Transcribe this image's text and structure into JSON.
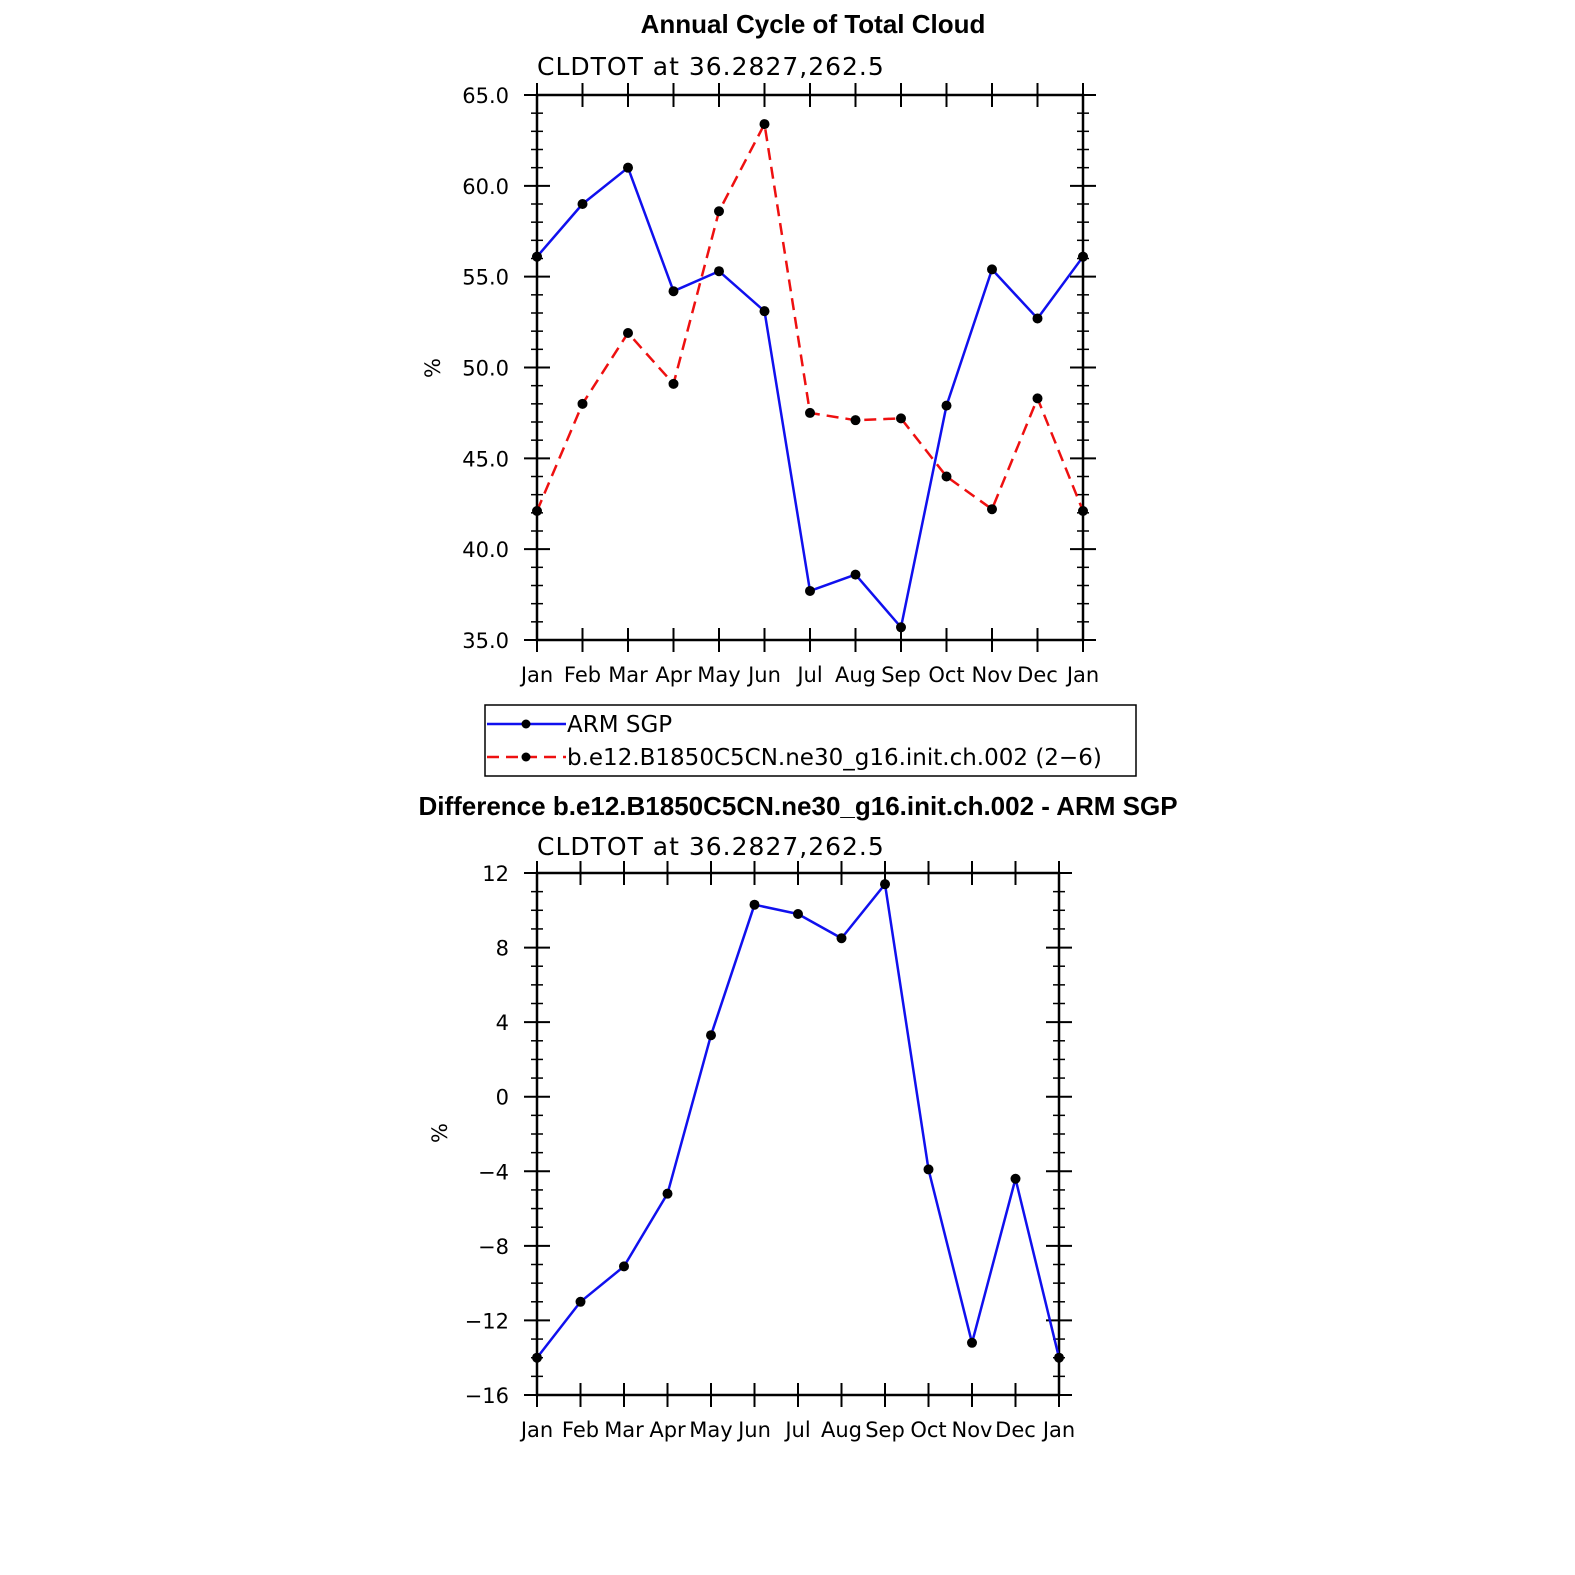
{
  "colors": {
    "obs": "#1010ee",
    "model": "#ee1010",
    "marker": "#000000",
    "axis": "#000000"
  },
  "chart_data": [
    {
      "type": "line",
      "title": "Annual Cycle of Total Cloud",
      "subtitle": "CLDTOT at 36.2827,262.5",
      "ylabel": "%",
      "ylim": [
        35.0,
        65.0
      ],
      "yticks": [
        35.0,
        40.0,
        45.0,
        50.0,
        55.0,
        60.0,
        65.0
      ],
      "ytick_labels": [
        "35.0",
        "40.0",
        "45.0",
        "50.0",
        "55.0",
        "60.0",
        "65.0"
      ],
      "yminor_step": 1,
      "categories": [
        "Jan",
        "Feb",
        "Mar",
        "Apr",
        "May",
        "Jun",
        "Jul",
        "Aug",
        "Sep",
        "Oct",
        "Nov",
        "Dec",
        "Jan"
      ],
      "series": [
        {
          "name": "ARM SGP",
          "style": "solid",
          "color": "#1010ee",
          "values": [
            56.1,
            59.0,
            61.0,
            54.2,
            55.3,
            53.1,
            37.7,
            38.6,
            35.7,
            47.9,
            55.4,
            52.7,
            56.1
          ]
        },
        {
          "name": "b.e12.B1850C5CN.ne30_g16.init.ch.002 (2−6)",
          "style": "dashed",
          "color": "#ee1010",
          "values": [
            42.1,
            48.0,
            51.9,
            49.1,
            58.6,
            63.4,
            47.5,
            47.1,
            47.2,
            44.0,
            42.2,
            48.3,
            42.1
          ]
        }
      ],
      "legend": {
        "position": "below",
        "entries": [
          "ARM SGP",
          "b.e12.B1850C5CN.ne30_g16.init.ch.002 (2−6)"
        ]
      }
    },
    {
      "type": "line",
      "title": "Difference b.e12.B1850C5CN.ne30_g16.init.ch.002 - ARM SGP",
      "subtitle": "CLDTOT at 36.2827,262.5",
      "ylabel": "%",
      "ylim": [
        -16,
        12
      ],
      "yticks": [
        -16,
        -12,
        -8,
        -4,
        0,
        4,
        8,
        12
      ],
      "ytick_labels": [
        "−16",
        "−12",
        "−8",
        "−4",
        "0",
        "4",
        "8",
        "12"
      ],
      "yminor_step": 1,
      "categories": [
        "Jan",
        "Feb",
        "Mar",
        "Apr",
        "May",
        "Jun",
        "Jul",
        "Aug",
        "Sep",
        "Oct",
        "Nov",
        "Dec",
        "Jan"
      ],
      "series": [
        {
          "name": "Difference",
          "style": "solid",
          "color": "#1010ee",
          "values": [
            -14.0,
            -11.0,
            -9.1,
            -5.2,
            3.3,
            10.3,
            9.8,
            8.5,
            11.4,
            -3.9,
            -13.2,
            -4.4,
            -14.0
          ]
        }
      ]
    }
  ]
}
